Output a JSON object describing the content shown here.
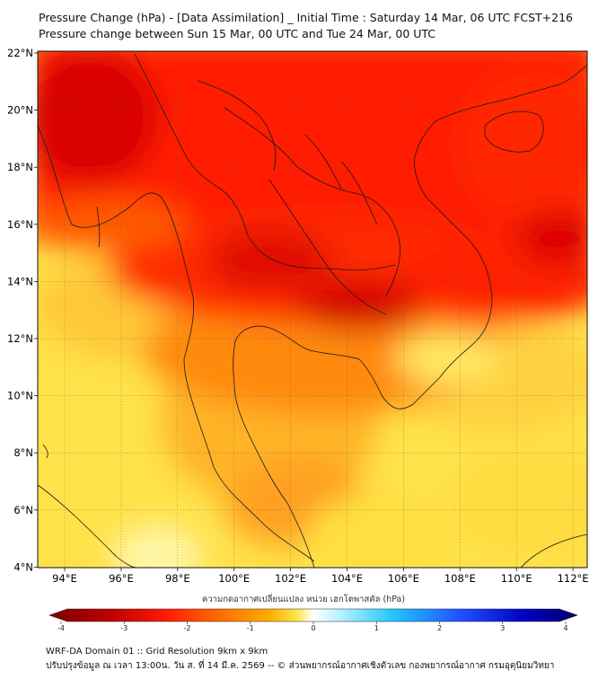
{
  "title_line1": "Pressure Change (hPa) - [Data Assimilation] _ Initial Time : Saturday 14 Mar, 06 UTC FCST+216",
  "title_line2": "Pressure change between Sun 15 Mar, 00 UTC and Tue 24 Mar, 00 UTC",
  "lat_labels": [
    "22°N",
    "20°N",
    "18°N",
    "16°N",
    "14°N",
    "12°N",
    "10°N",
    "8°N",
    "6°N",
    "4°N"
  ],
  "lon_labels": [
    "94°E",
    "96°E",
    "98°E",
    "100°E",
    "102°E",
    "104°E",
    "106°E",
    "108°E",
    "110°E",
    "112°E"
  ],
  "colorbar": {
    "title": "ความกดอากาศเปลี่ยนแปลง หน่วย เฮกโตพาสคัล (hPa)",
    "tick_labels": [
      "-4",
      "-3",
      "-2",
      "-1",
      "0",
      "1",
      "2",
      "3",
      "4"
    ],
    "colors": [
      "#7a0000",
      "#c00000",
      "#ff1a00",
      "#ff6a00",
      "#ffb000",
      "#ffe84a",
      "#ffffff",
      "#80e8ff",
      "#20b0ff",
      "#2050ff",
      "#0000b0",
      "#00006a"
    ]
  },
  "footer_line1": "WRF-DA Domain 01 :: Grid Resolution 9km x 9km",
  "footer_line2": "ปรับปรุงข้อมูล ณ เวลา 13:00น. วัน ส. ที่ 14 มี.ค. 2569 -- © ส่วนพยากรณ์อากาศเชิงตัวเลข กองพยากรณ์อากาศ กรมอุตุนิยมวิทยา"
}
